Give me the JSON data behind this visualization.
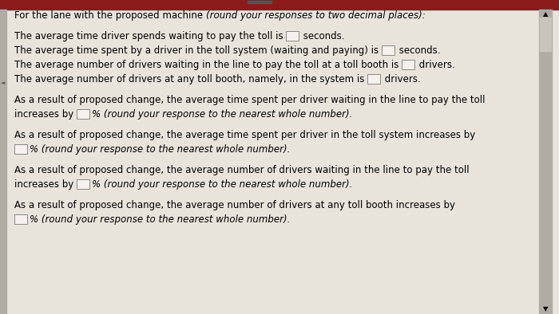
{
  "bg_color": "#e8e4dc",
  "content_bg": "#e8e4dc",
  "top_bar_color": "#8b1a1a",
  "scrollbar_bg": "#b0aca4",
  "scrollbar_thumb": "#c8c4bc",
  "left_bar_color": "#9a9690",
  "title_normal": "For the lane with the proposed machine ",
  "title_italic": "(round your responses to two decimal places):",
  "line1_pre": "The average time driver spends waiting to pay the toll is ",
  "line1_post": " seconds.",
  "line2_pre": "The average time spent by a driver in the toll system (waiting and paying) is ",
  "line2_post": " seconds.",
  "line3_pre": "The average number of drivers waiting in the line to pay the toll at a toll booth is ",
  "line3_post": " drivers.",
  "line4_pre": "The average number of drivers at any toll booth, namely, in the system is ",
  "line4_post": " drivers.",
  "para1_l1": "As a result of proposed change, the average time spent per driver waiting in the line to pay the toll",
  "para1_l2_pre": "increases by ",
  "para1_l2_italic": "% (round your response to the nearest whole number).",
  "para2_l1": "As a result of proposed change, the average time spent per driver in the toll system increases by",
  "para2_l2_italic": "% (round your response to the nearest whole number).",
  "para3_l1": "As a result of proposed change, the average number of drivers waiting in the line to pay the toll",
  "para3_l2_pre": "increases by ",
  "para3_l2_italic": "% (round your response to the nearest whole number).",
  "para4_l1": "As a result of proposed change, the average number of drivers at any toll booth increases by",
  "para4_l2_italic": "% (round your response to the nearest whole number).",
  "font_size": 8.5,
  "box_color": "#f5f2ee",
  "box_edge": "#888884"
}
